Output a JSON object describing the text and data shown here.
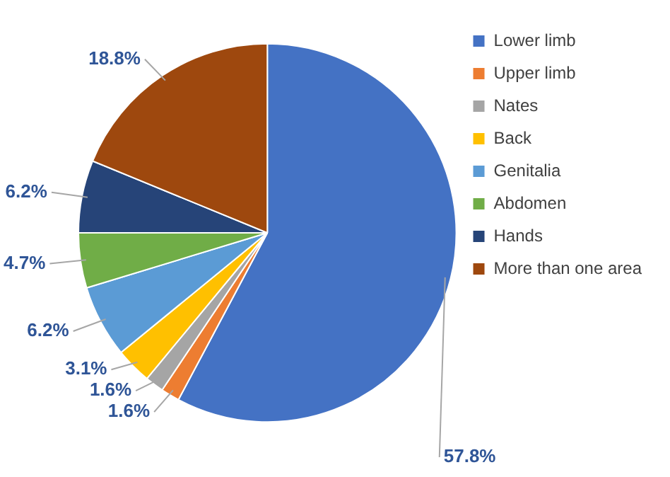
{
  "chart_data": {
    "type": "pie",
    "categories": [
      "Lower limb",
      "Upper limb",
      "Nates",
      "Back",
      "Genitalia",
      "Abdomen",
      "Hands",
      "More than one area"
    ],
    "values": [
      57.8,
      1.6,
      1.6,
      3.1,
      6.2,
      4.7,
      6.2,
      18.8
    ],
    "colors": [
      "#4472c4",
      "#ed7d31",
      "#a5a5a5",
      "#ffc000",
      "#5b9bd5",
      "#70ad47",
      "#264478",
      "#9e480e"
    ],
    "value_labels": [
      "57.8%",
      "1.6%",
      "1.6%",
      "3.1%",
      "6.2%",
      "4.7%",
      "6.2%",
      "18.8%"
    ],
    "legend": "right"
  }
}
